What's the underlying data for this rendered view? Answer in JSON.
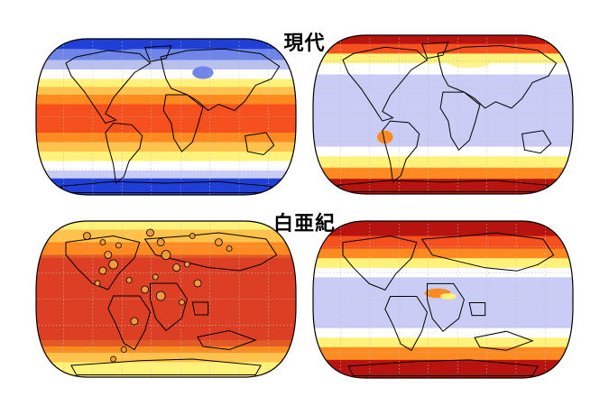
{
  "titles": {
    "row1": "現代",
    "row2": "白亜紀"
  },
  "maps": [
    {
      "id": "modern-absolute",
      "era": "row1",
      "style": "absolute"
    },
    {
      "id": "modern-change",
      "era": "row1",
      "style": "change"
    },
    {
      "id": "cretaceous-absolute",
      "era": "row2",
      "style": "absolute"
    },
    {
      "id": "cretaceous-change",
      "era": "row2",
      "style": "change"
    }
  ],
  "colors": {
    "deep_blue": "#1f3fd6",
    "blue": "#6f86e8",
    "pale_blue": "#b8c0f0",
    "lavender": "#c9cdf5",
    "white": "#ffffff",
    "yellow": "#fff27a",
    "light_orange": "#ffc24a",
    "orange": "#ff8a1f",
    "red_orange": "#f5501e",
    "red": "#e02a1a",
    "dark_red": "#b8140f",
    "cretaceous_overlay": "#c8322a",
    "coastline": "#000000",
    "grid": "#bbbbbb",
    "proxy_marker": "#f39b3c"
  }
}
